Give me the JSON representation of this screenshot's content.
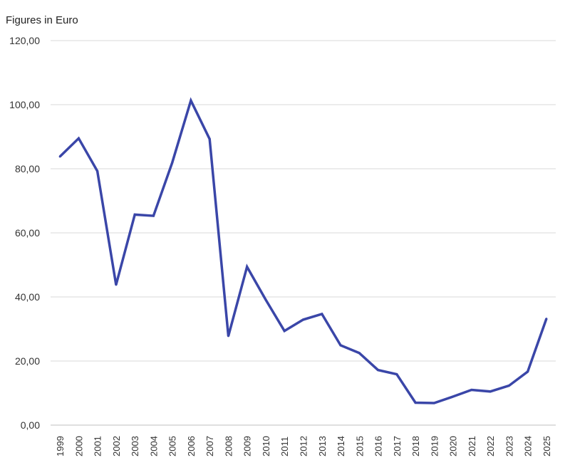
{
  "chart_data": {
    "type": "line",
    "ylabel": "Figures in Euro",
    "ylim": [
      0,
      120
    ],
    "yticks": [
      0,
      20,
      40,
      60,
      80,
      100,
      120
    ],
    "ytick_labels": [
      "0,00",
      "20,00",
      "40,00",
      "60,00",
      "80,00",
      "100,00",
      "120,00"
    ],
    "grid": true,
    "line_color": "#3A46A8",
    "x": [
      "1999",
      "2000",
      "2001",
      "2002",
      "2003",
      "2004",
      "2005",
      "2006",
      "2007",
      "2008",
      "2009",
      "2010",
      "2011",
      "2012",
      "2013",
      "2014",
      "2015",
      "2016",
      "2017",
      "2018",
      "2019",
      "2020",
      "2021",
      "2022",
      "2023",
      "2024",
      "2025"
    ],
    "series": [
      {
        "values": [
          83.8,
          89.5,
          79.3,
          43.8,
          65.7,
          65.3,
          81.9,
          101.3,
          89.3,
          27.8,
          49.4,
          39.1,
          29.4,
          32.9,
          34.7,
          24.9,
          22.5,
          17.2,
          15.9,
          7.0,
          6.9,
          8.9,
          11.0,
          10.5,
          12.3,
          16.7,
          33.2
        ]
      }
    ]
  }
}
